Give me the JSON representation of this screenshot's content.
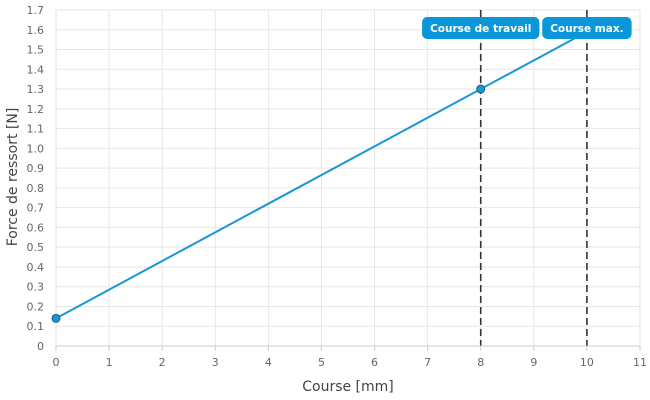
{
  "chart_data": {
    "type": "line",
    "xlabel": "Course [mm]",
    "ylabel": "Force de ressort [N]",
    "xlim": [
      0,
      11
    ],
    "ylim": [
      0,
      1.7
    ],
    "x_ticks": [
      "0",
      "1",
      "2",
      "3",
      "4",
      "5",
      "6",
      "7",
      "8",
      "9",
      "10",
      "11"
    ],
    "y_ticks": [
      "0",
      "0.1",
      "0.2",
      "0.3",
      "0.4",
      "0.5",
      "0.6",
      "0.7",
      "0.8",
      "0.9",
      "1.0",
      "1.1",
      "1.2",
      "1.3",
      "1.4",
      "1.5",
      "1.6",
      "1.7"
    ],
    "grid": true,
    "series": [
      {
        "color": "#1a96d4",
        "x": [
          0,
          10
        ],
        "y": [
          0.14,
          1.59
        ]
      }
    ],
    "points": [
      {
        "x": 0,
        "y": 0.14
      },
      {
        "x": 8,
        "y": 1.3
      }
    ],
    "markers": [
      {
        "label": "Course de travail",
        "x": 8
      },
      {
        "label": "Course max.",
        "x": 10
      }
    ],
    "colors": {
      "line": "#1a96d4",
      "marker_label_bg": "#0a97d9",
      "marker_line": "#333333",
      "grid": "#e6e6e6"
    }
  }
}
